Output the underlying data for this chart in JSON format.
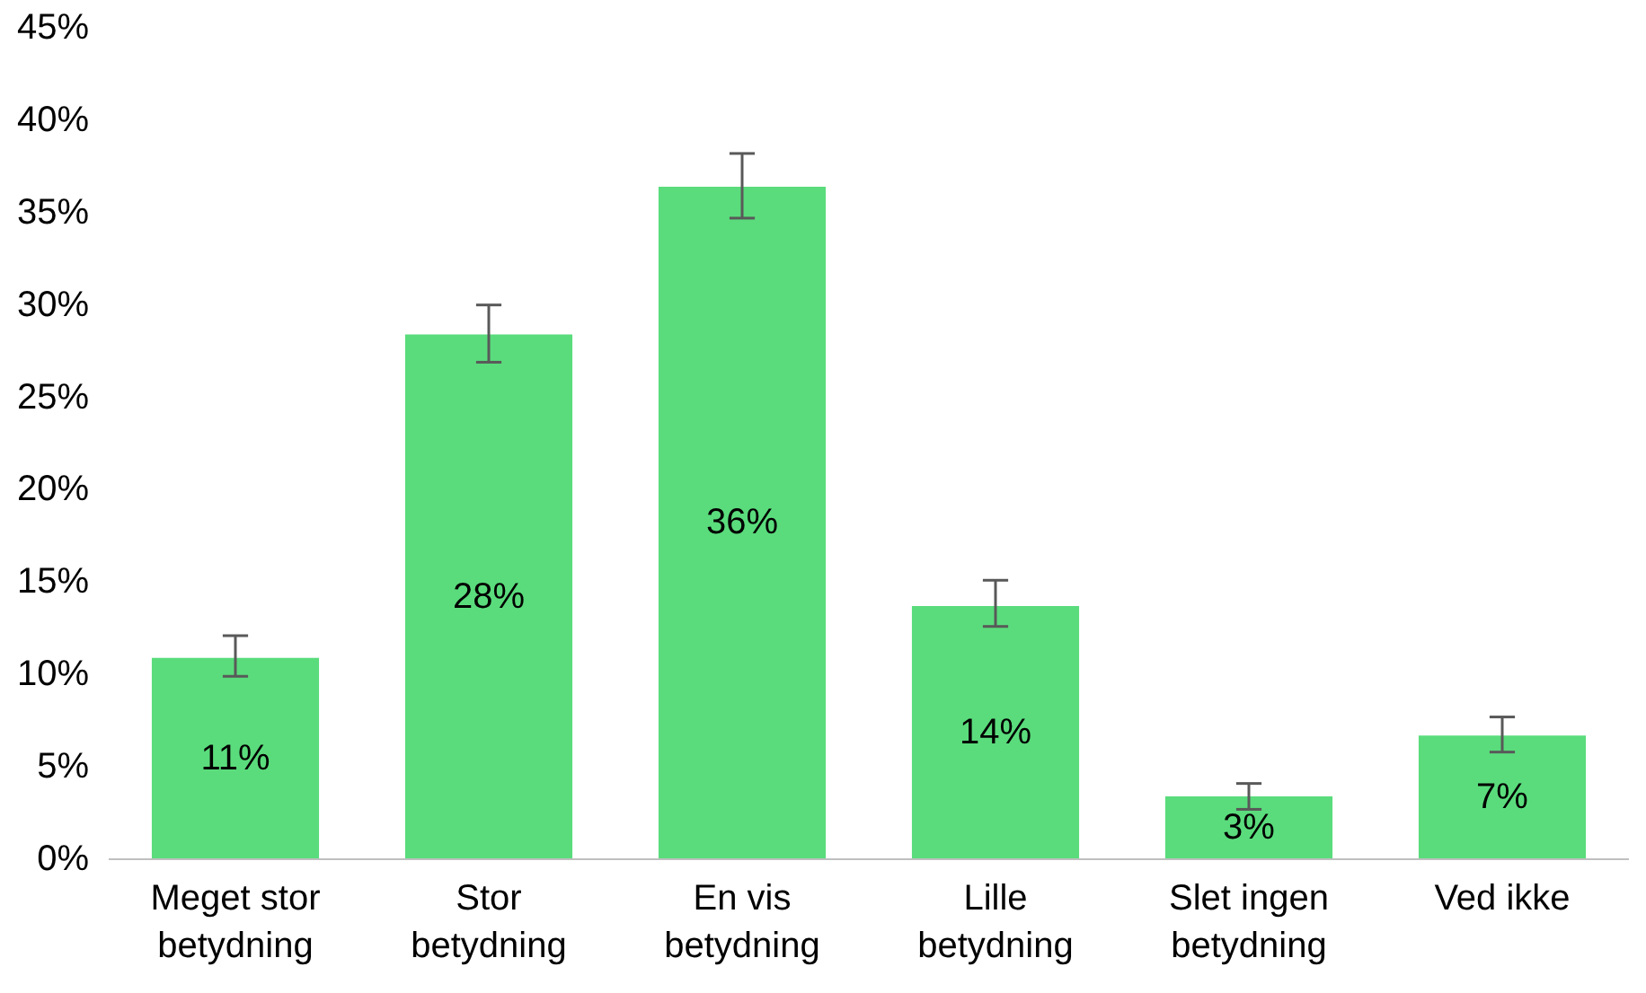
{
  "chart_data": {
    "type": "bar",
    "categories": [
      "Meget stor betydning",
      "Stor betydning",
      "En vis betydning",
      "Lille betydning",
      "Slet ingen betydning",
      "Ved ikke"
    ],
    "values": [
      10.9,
      28.4,
      36.4,
      13.7,
      3.4,
      6.7
    ],
    "value_labels": [
      "11%",
      "28%",
      "36%",
      "14%",
      "3%",
      "7%"
    ],
    "errors": [
      [
        9.9,
        12.1
      ],
      [
        26.9,
        30.0
      ],
      [
        34.7,
        38.2
      ],
      [
        12.6,
        15.1
      ],
      [
        2.7,
        4.1
      ],
      [
        5.8,
        7.7
      ]
    ],
    "color": "#5adc7c",
    "ylim": [
      0,
      45
    ],
    "yticks": [
      {
        "value": 0,
        "label": "0%"
      },
      {
        "value": 5,
        "label": "5%"
      },
      {
        "value": 10,
        "label": "10%"
      },
      {
        "value": 15,
        "label": "15%"
      },
      {
        "value": 20,
        "label": "20%"
      },
      {
        "value": 25,
        "label": "25%"
      },
      {
        "value": 30,
        "label": "30%"
      },
      {
        "value": 35,
        "label": "35%"
      },
      {
        "value": 40,
        "label": "40%"
      },
      {
        "value": 45,
        "label": "45%"
      }
    ],
    "orientation": "vertical"
  }
}
